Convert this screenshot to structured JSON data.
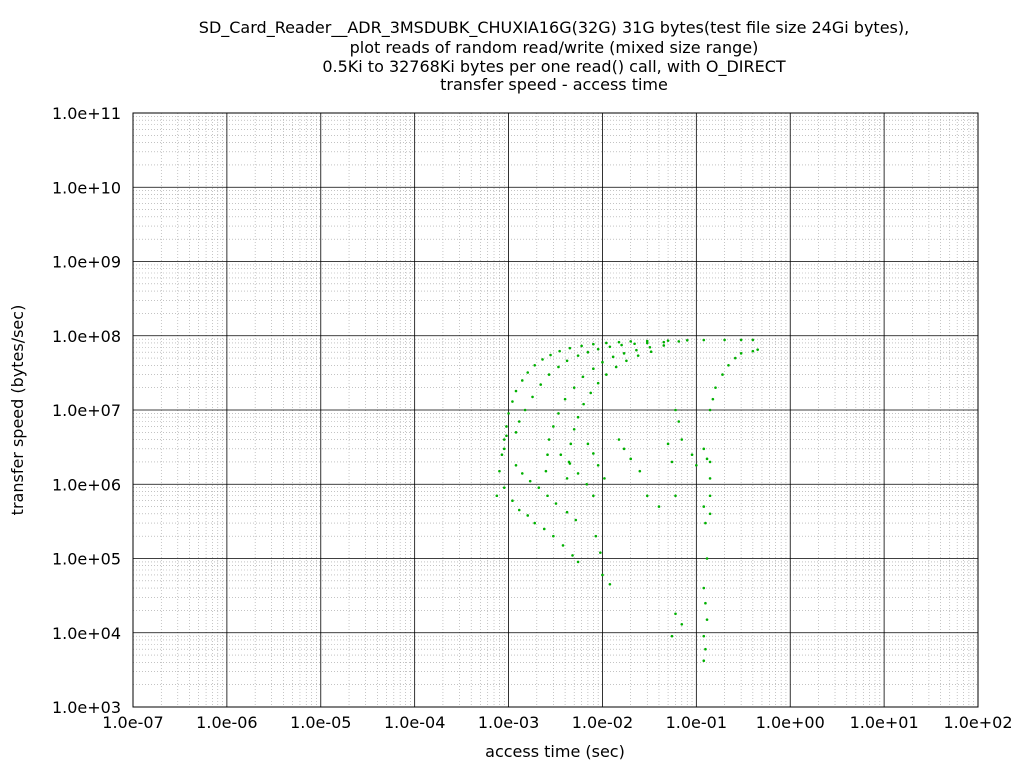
{
  "chart_data": {
    "type": "scatter",
    "title_lines": [
      "SD_Card_Reader__ADR_3MSDUBK_CHUXIA16G(32G) 31G bytes(test file size 24Gi bytes),",
      "plot reads of random read/write (mixed size range)",
      "0.5Ki to 32768Ki bytes per one read() call, with O_DIRECT",
      "transfer speed - access time"
    ],
    "xlabel": "access time (sec)",
    "ylabel": "transfer speed (bytes/sec)",
    "x_scale": "log",
    "y_scale": "log",
    "xlim": [
      1e-07,
      100
    ],
    "ylim": [
      1000,
      100000000000
    ],
    "x_tick_labels": [
      "1.0e-07",
      "1.0e-06",
      "1.0e-05",
      "1.0e-04",
      "1.0e-03",
      "1.0e-02",
      "1.0e-01",
      "1.0e+00",
      "1.0e+01",
      "1.0e+02"
    ],
    "y_tick_labels": [
      "1.0e+03",
      "1.0e+04",
      "1.0e+05",
      "1.0e+06",
      "1.0e+07",
      "1.0e+08",
      "1.0e+09",
      "1.0e+10",
      "1.0e+11"
    ],
    "grid": "major solid, minor dotted",
    "point_color": "#00b000",
    "series": [
      {
        "points": [
          [
            0.00075,
            700000
          ],
          [
            0.0008,
            1500000
          ],
          [
            0.00085,
            2500000
          ],
          [
            0.0009,
            4000000
          ],
          [
            0.00095,
            6000000
          ],
          [
            0.001,
            9000000
          ],
          [
            0.0011,
            13000000
          ],
          [
            0.0012,
            18000000
          ],
          [
            0.0014,
            25000000
          ],
          [
            0.0016,
            32000000
          ],
          [
            0.0019,
            40000000
          ],
          [
            0.0023,
            48000000
          ],
          [
            0.0028,
            55000000
          ],
          [
            0.0035,
            62000000
          ],
          [
            0.0045,
            68000000
          ],
          [
            0.006,
            73000000
          ],
          [
            0.008,
            77000000
          ],
          [
            0.011,
            80000000
          ],
          [
            0.015,
            82000000
          ],
          [
            0.02,
            84000000
          ],
          [
            0.03,
            85000000
          ],
          [
            0.05,
            86000000
          ],
          [
            0.08,
            87000000
          ],
          [
            0.12,
            87500000
          ],
          [
            0.2,
            88000000
          ],
          [
            0.3,
            88000000
          ],
          [
            0.4,
            88000000
          ],
          [
            0.0009,
            3000000
          ],
          [
            0.00095,
            4500000
          ],
          [
            0.0012,
            5000000
          ],
          [
            0.0013,
            7000000
          ],
          [
            0.0015,
            10000000
          ],
          [
            0.0018,
            15000000
          ],
          [
            0.0022,
            22000000
          ],
          [
            0.0027,
            30000000
          ],
          [
            0.0034,
            38000000
          ],
          [
            0.0042,
            46000000
          ],
          [
            0.0055,
            54000000
          ],
          [
            0.007,
            60000000
          ],
          [
            0.009,
            66000000
          ],
          [
            0.012,
            71000000
          ],
          [
            0.016,
            75000000
          ],
          [
            0.022,
            78000000
          ],
          [
            0.03,
            80000000
          ],
          [
            0.045,
            82000000
          ],
          [
            0.065,
            84000000
          ],
          [
            0.0025,
            1500000
          ],
          [
            0.0026,
            2500000
          ],
          [
            0.0027,
            4000000
          ],
          [
            0.003,
            6000000
          ],
          [
            0.0034,
            9000000
          ],
          [
            0.004,
            14000000
          ],
          [
            0.005,
            20000000
          ],
          [
            0.0062,
            28000000
          ],
          [
            0.008,
            36000000
          ],
          [
            0.01,
            44000000
          ],
          [
            0.013,
            52000000
          ],
          [
            0.017,
            58000000
          ],
          [
            0.023,
            64000000
          ],
          [
            0.032,
            70000000
          ],
          [
            0.045,
            74000000
          ],
          [
            0.0042,
            1200000
          ],
          [
            0.0044,
            2000000
          ],
          [
            0.0046,
            3500000
          ],
          [
            0.005,
            5500000
          ],
          [
            0.0055,
            8000000
          ],
          [
            0.0063,
            12000000
          ],
          [
            0.0075,
            17000000
          ],
          [
            0.009,
            23000000
          ],
          [
            0.011,
            30000000
          ],
          [
            0.014,
            38000000
          ],
          [
            0.018,
            46000000
          ],
          [
            0.024,
            54000000
          ],
          [
            0.033,
            61000000
          ],
          [
            0.0009,
            900000
          ],
          [
            0.0011,
            600000
          ],
          [
            0.0013,
            450000
          ],
          [
            0.0016,
            380000
          ],
          [
            0.0019,
            300000
          ],
          [
            0.0024,
            250000
          ],
          [
            0.003,
            200000
          ],
          [
            0.0038,
            150000
          ],
          [
            0.0048,
            110000
          ],
          [
            0.0055,
            90000
          ],
          [
            0.0012,
            1800000
          ],
          [
            0.0014,
            1400000
          ],
          [
            0.0017,
            1100000
          ],
          [
            0.0021,
            900000
          ],
          [
            0.0026,
            700000
          ],
          [
            0.0032,
            550000
          ],
          [
            0.0042,
            420000
          ],
          [
            0.0052,
            330000
          ],
          [
            0.0036,
            2500000
          ],
          [
            0.0045,
            1900000
          ],
          [
            0.0055,
            1400000
          ],
          [
            0.0068,
            1000000
          ],
          [
            0.008,
            700000
          ],
          [
            0.01,
            60000
          ],
          [
            0.012,
            45000
          ],
          [
            0.0085,
            200000
          ],
          [
            0.0095,
            120000
          ],
          [
            0.007,
            3500000
          ],
          [
            0.008,
            2600000
          ],
          [
            0.009,
            1800000
          ],
          [
            0.0105,
            1200000
          ],
          [
            0.015,
            4000000
          ],
          [
            0.017,
            3000000
          ],
          [
            0.02,
            2200000
          ],
          [
            0.025,
            1500000
          ],
          [
            0.03,
            700000
          ],
          [
            0.04,
            500000
          ],
          [
            0.06,
            700000
          ],
          [
            0.055,
            2000000
          ],
          [
            0.05,
            3500000
          ],
          [
            0.06,
            10000000
          ],
          [
            0.065,
            7000000
          ],
          [
            0.07,
            4000000
          ],
          [
            0.09,
            2500000
          ],
          [
            0.1,
            1800000
          ],
          [
            0.12,
            3000000
          ],
          [
            0.13,
            2200000
          ],
          [
            0.14,
            10000000
          ],
          [
            0.15,
            14000000
          ],
          [
            0.16,
            20000000
          ],
          [
            0.19,
            30000000
          ],
          [
            0.22,
            40000000
          ],
          [
            0.26,
            50000000
          ],
          [
            0.3,
            58000000
          ],
          [
            0.4,
            62000000
          ],
          [
            0.45,
            65000000
          ],
          [
            0.12,
            500000
          ],
          [
            0.125,
            300000
          ],
          [
            0.13,
            100000
          ],
          [
            0.12,
            40000
          ],
          [
            0.125,
            25000
          ],
          [
            0.13,
            15000
          ],
          [
            0.12,
            9000
          ],
          [
            0.125,
            6000
          ],
          [
            0.12,
            4200
          ],
          [
            0.06,
            18000
          ],
          [
            0.07,
            13000
          ],
          [
            0.055,
            9000
          ],
          [
            0.14,
            2000000
          ],
          [
            0.14,
            1200000
          ],
          [
            0.14,
            700000
          ],
          [
            0.14,
            400000
          ]
        ]
      }
    ]
  }
}
